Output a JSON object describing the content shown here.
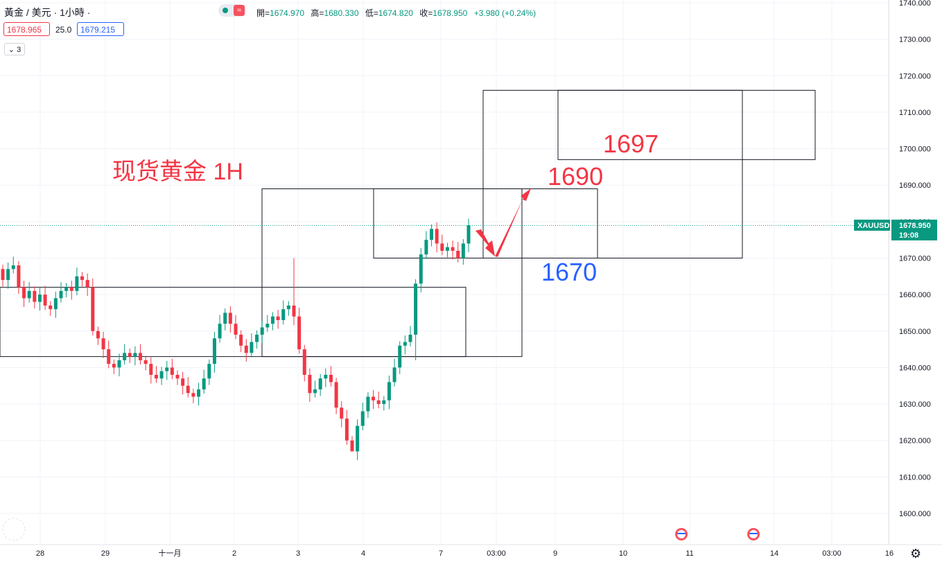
{
  "header": {
    "symbol": "黃金 / 美元 · 1小時 ·",
    "badge_symbol": "≈",
    "ohlc": [
      {
        "label": "開=",
        "value": "1674.970"
      },
      {
        "label": "高=",
        "value": "1680.330"
      },
      {
        "label": "低=",
        "value": "1674.820"
      },
      {
        "label": "收=",
        "value": "1678.950"
      },
      {
        "label": "",
        "value": "+3.980 (+0.24%)"
      }
    ],
    "sell_price": "1678.965",
    "spread": "25.0",
    "buy_price": "1679.215",
    "collapsed_count": "3"
  },
  "annotations": {
    "title": "现货黄金 1H",
    "level_1697": "1697",
    "level_1690": "1690",
    "level_1670": "1670"
  },
  "colors": {
    "up": "#089981",
    "down": "#f23645",
    "annotation_red": "#f23645",
    "annotation_blue": "#2962ff",
    "price_tag": "#089981"
  },
  "chart_data": {
    "type": "candlestick",
    "symbol": "XAUUSD",
    "timeframe": "1H",
    "y_range": [
      1593,
      1741
    ],
    "y_ticks": [
      "1740.000",
      "1730.000",
      "1720.000",
      "1710.000",
      "1700.000",
      "1690.000",
      "1680.000",
      "1670.000",
      "1660.000",
      "1650.000",
      "1640.000",
      "1630.000",
      "1620.000",
      "1610.000",
      "1600.000"
    ],
    "x_labels": [
      "28",
      "29",
      "十一月",
      "2",
      "3",
      "4",
      "7",
      "03:00",
      "9",
      "10",
      "11",
      "14",
      "03:00",
      "16"
    ],
    "last_price": "1678.950",
    "countdown": "19:08",
    "price_tag_symbol": "XAUUSD",
    "closes": [
      1664,
      1667,
      1668,
      1662,
      1659,
      1661,
      1658,
      1660,
      1657,
      1656,
      1659,
      1661,
      1662,
      1661,
      1665,
      1664,
      1662,
      1650,
      1648,
      1645,
      1641,
      1640,
      1642,
      1644,
      1643,
      1644,
      1642,
      1641,
      1638,
      1637,
      1639,
      1640,
      1638,
      1637,
      1635,
      1633,
      1632,
      1634,
      1637,
      1641,
      1648,
      1652,
      1655,
      1652,
      1649,
      1646,
      1644,
      1647,
      1649,
      1651,
      1652,
      1654,
      1653,
      1656,
      1657,
      1654,
      1645,
      1638,
      1633,
      1634,
      1637,
      1638,
      1636,
      1629,
      1626,
      1620,
      1617,
      1624,
      1628,
      1632,
      1631,
      1630,
      1631,
      1636,
      1640,
      1646,
      1647,
      1649,
      1663,
      1671,
      1675,
      1678,
      1674,
      1672,
      1673,
      1672,
      1670,
      1674,
      1679
    ]
  }
}
